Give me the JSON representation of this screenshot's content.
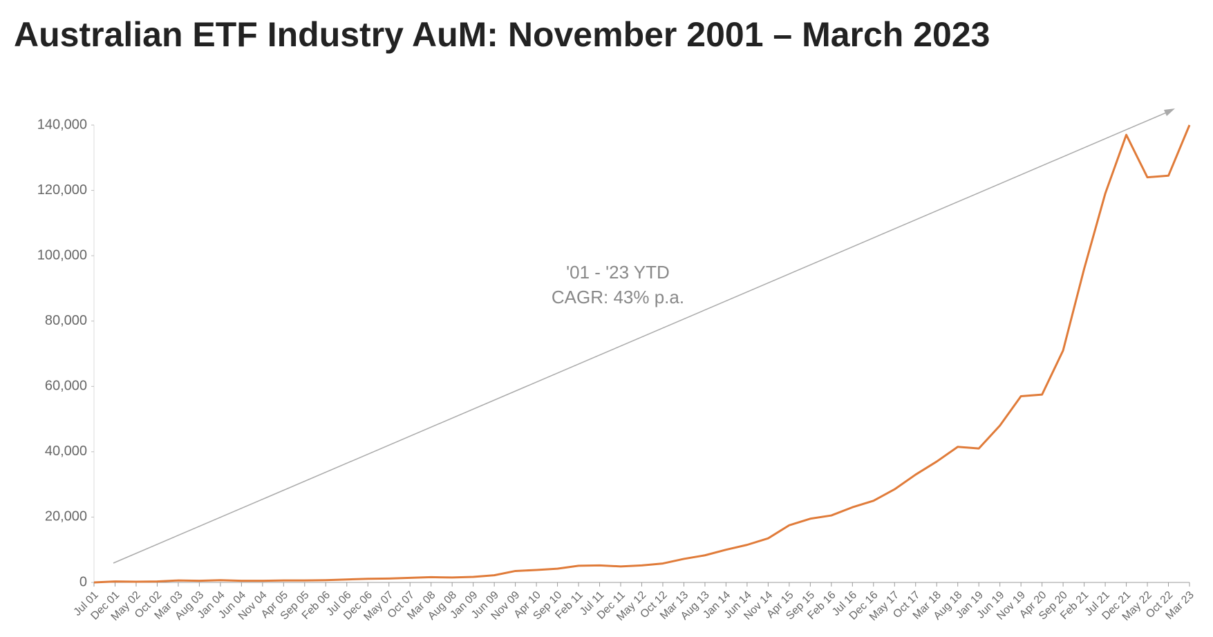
{
  "chart_data": {
    "type": "line",
    "title": "Australian ETF Industry AuM: November 2001 – March 2023",
    "annotation": [
      "'01 - '23 YTD",
      "CAGR: 43% p.a."
    ],
    "categories": [
      "Jul 01",
      "Dec 01",
      "May 02",
      "Oct 02",
      "Mar 03",
      "Aug 03",
      "Jan 04",
      "Jun 04",
      "Nov 04",
      "Apr 05",
      "Sep 05",
      "Feb 06",
      "Jul 06",
      "Dec 06",
      "May 07",
      "Oct 07",
      "Mar 08",
      "Aug 08",
      "Jan 09",
      "Jun 09",
      "Nov 09",
      "Apr 10",
      "Sep 10",
      "Feb 11",
      "Jul 11",
      "Dec 11",
      "May 12",
      "Oct 12",
      "Mar 13",
      "Aug 13",
      "Jan 14",
      "Jun 14",
      "Nov 14",
      "Apr 15",
      "Sep 15",
      "Feb 16",
      "Jul 16",
      "Dec 16",
      "May 17",
      "Oct 17",
      "Mar 18",
      "Aug 18",
      "Jan 19",
      "Jun 19",
      "Nov 19",
      "Apr 20",
      "Sep 20",
      "Feb 21",
      "Jul 21",
      "Dec 21",
      "May 22",
      "Oct 22",
      "Mar 23"
    ],
    "series": [
      {
        "name": "AuM",
        "color": "#e07b39",
        "values": [
          0,
          300,
          200,
          300,
          600,
          500,
          700,
          500,
          500,
          600,
          600,
          700,
          900,
          1100,
          1200,
          1400,
          1600,
          1500,
          1700,
          2200,
          3500,
          3800,
          4200,
          5100,
          5200,
          4900,
          5200,
          5800,
          7200,
          8300,
          10000,
          11500,
          13500,
          17500,
          19500,
          20500,
          23000,
          25000,
          28500,
          33000,
          37000,
          41500,
          41000,
          48000,
          57000,
          57500,
          71000,
          96000,
          119000,
          137000,
          124000,
          124500,
          140000
        ]
      }
    ],
    "ylim": [
      0,
      140000
    ],
    "yticks": [
      {
        "value": 0,
        "label": "0"
      },
      {
        "value": 20000,
        "label": "20,000"
      },
      {
        "value": 40000,
        "label": "40,000"
      },
      {
        "value": 60000,
        "label": "60,000"
      },
      {
        "value": 80000,
        "label": "80,000"
      },
      {
        "value": 100000,
        "label": "100,000"
      },
      {
        "value": 120000,
        "label": "120,000"
      },
      {
        "value": 140000,
        "label": "140,000"
      }
    ]
  }
}
